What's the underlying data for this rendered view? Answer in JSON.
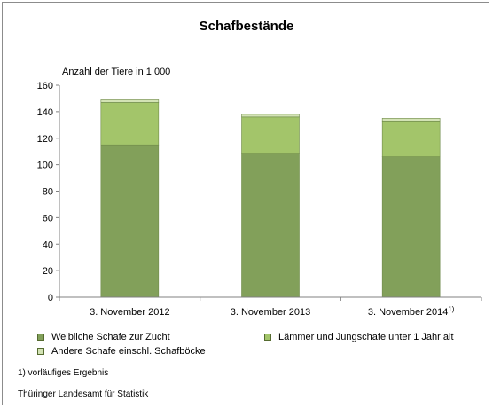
{
  "chart_data": {
    "type": "bar",
    "stacked": true,
    "title": "Schafbestände",
    "ylabel": "Anzahl der Tiere in 1 000",
    "ylim": [
      0,
      160
    ],
    "yticks": [
      0,
      20,
      40,
      60,
      80,
      100,
      120,
      140,
      160
    ],
    "grid": false,
    "categories": [
      "3. November 2012",
      "3. November 2013",
      "3. November 2014"
    ],
    "category_superscripts": [
      "",
      "",
      "1)"
    ],
    "series": [
      {
        "name": "Weibliche Schafe zur Zucht",
        "values": [
          115,
          108,
          106
        ],
        "color": "#82a05a"
      },
      {
        "name": "Lämmer und Jungschafe unter 1 Jahr alt",
        "values": [
          32,
          28,
          27
        ],
        "color": "#a3c56a"
      },
      {
        "name": "Andere Schafe einschl. Schafböcke",
        "values": [
          2,
          2,
          2
        ],
        "color": "#d3e3b5"
      }
    ],
    "legend_position": "bottom"
  },
  "footnote": "1) vorläufiges Ergebnis",
  "source": "Thüringer Landesamt für Statistik"
}
